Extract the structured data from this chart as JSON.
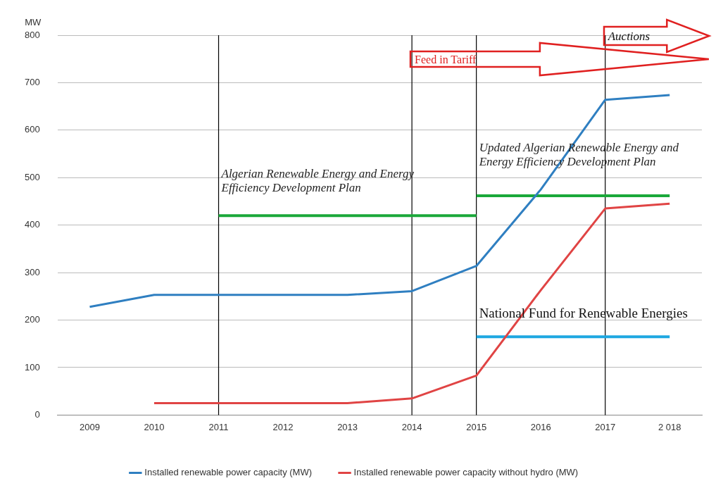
{
  "chart_data": {
    "type": "line",
    "ylabel": "MW",
    "categories": [
      "2009",
      "2010",
      "2011",
      "2012",
      "2013",
      "2014",
      "2015",
      "2016",
      "2017",
      "2 018"
    ],
    "series": [
      {
        "name": "Installed renewable power capacity (MW)",
        "color": "#2f7fc1",
        "values": [
          228,
          253,
          253,
          253,
          253,
          261,
          314,
          475,
          664,
          674
        ]
      },
      {
        "name": "Installed renewable power capacity without hydro (MW)",
        "color": "#e04444",
        "values": [
          null,
          25,
          25,
          25,
          25,
          35,
          83,
          263,
          435,
          445
        ]
      },
      {
        "color": "#1aa83a",
        "values": [
          null,
          null,
          420,
          420,
          420,
          420,
          420,
          null,
          null,
          null
        ]
      },
      {
        "color": "#1aa83a",
        "values": [
          null,
          null,
          null,
          null,
          null,
          null,
          462,
          462,
          462,
          462
        ]
      },
      {
        "color": "#1ea7e1",
        "values": [
          null,
          null,
          null,
          null,
          null,
          null,
          165,
          165,
          165,
          165
        ]
      }
    ],
    "ylim": [
      0,
      800
    ],
    "yticks": [
      0,
      100,
      200,
      300,
      400,
      500,
      600,
      700,
      800
    ],
    "grid": "y",
    "legend": "bottom",
    "marker": "none",
    "line_style": "solid",
    "ref_lines": [
      {
        "axis": "x",
        "value": "2011",
        "color": "#000000"
      },
      {
        "axis": "x",
        "value": "2014",
        "color": "#000000"
      },
      {
        "axis": "x",
        "value": "2015",
        "color": "#000000"
      },
      {
        "axis": "x",
        "value": "2017",
        "color": "#000000"
      }
    ],
    "annotations": [
      {
        "text": "Algerian Renewable Energy and Energy Efficiency Development Plan",
        "x": "2011",
        "y": 500
      },
      {
        "text": "Updated Algerian Renewable Energy and Energy Efficiency Development Plan",
        "x": "2015",
        "y": 555
      },
      {
        "text": "National Fund for Renewable Energies",
        "x": "2015",
        "y": 205
      },
      {
        "text": "Feed in Tariff",
        "x": "2014",
        "y": 740
      },
      {
        "text": "Auctions",
        "x": "2017",
        "y": 790
      }
    ]
  }
}
